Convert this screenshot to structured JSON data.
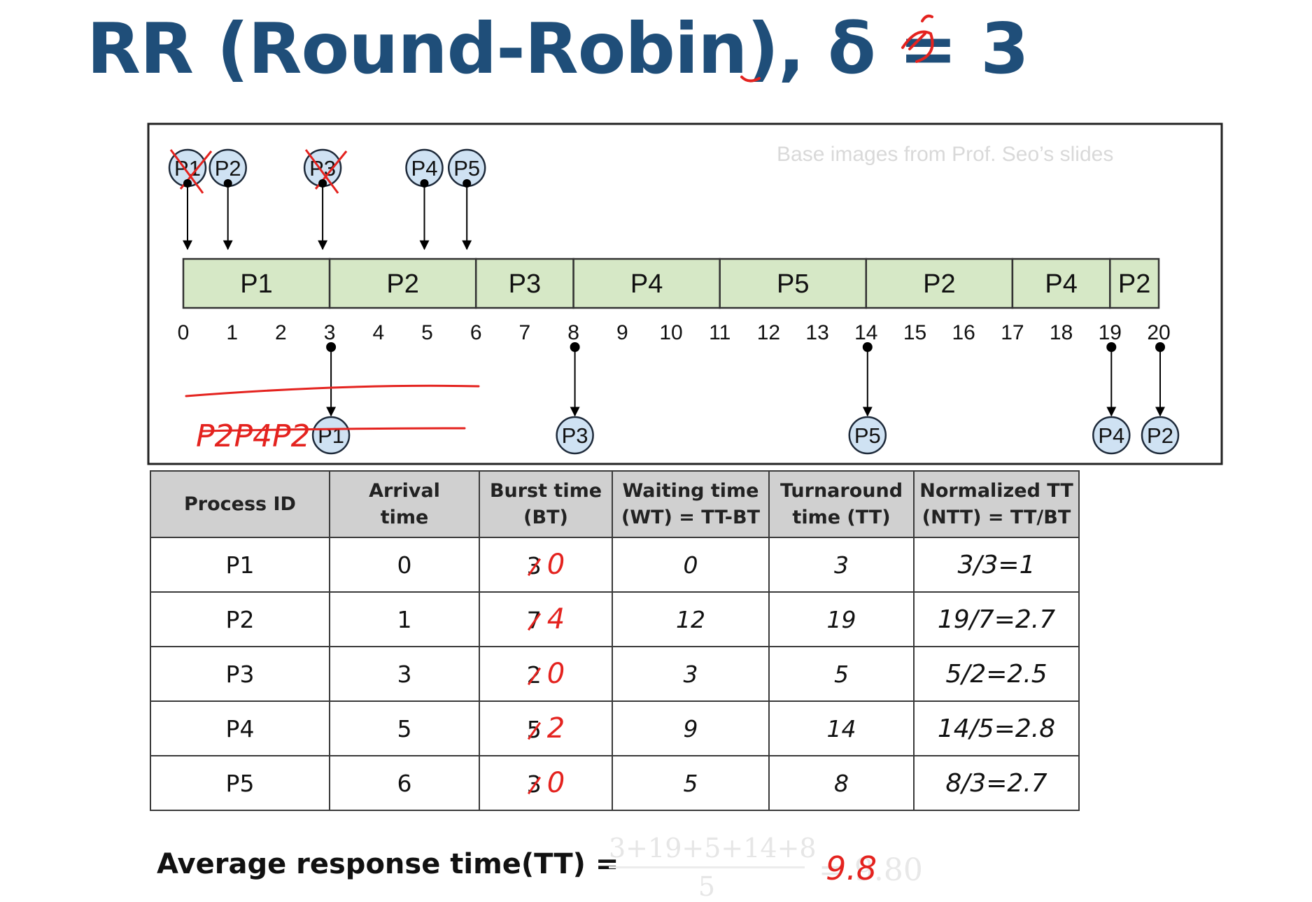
{
  "title": "RR (Round-Robin), δ = 3",
  "credit": "Base images from Prof. Seo’s slides",
  "gantt": {
    "segments": [
      {
        "label": "P1",
        "start": 0,
        "end": 3
      },
      {
        "label": "P2",
        "start": 3,
        "end": 6
      },
      {
        "label": "P3",
        "start": 6,
        "end": 8
      },
      {
        "label": "P4",
        "start": 8,
        "end": 11
      },
      {
        "label": "P5",
        "start": 11,
        "end": 14
      },
      {
        "label": "P2",
        "start": 14,
        "end": 17
      },
      {
        "label": "P4",
        "start": 17,
        "end": 19
      },
      {
        "label": "P2",
        "start": 19,
        "end": 20
      }
    ],
    "ticks": [
      "0",
      "1",
      "2",
      "3",
      "4",
      "5",
      "6",
      "7",
      "8",
      "9",
      "10",
      "11",
      "12",
      "13",
      "14",
      "15",
      "16",
      "17",
      "18",
      "19",
      "20"
    ],
    "arrivals": [
      {
        "label": "P1",
        "time": 0,
        "crossed": true
      },
      {
        "label": "P2",
        "time": 1,
        "crossed": false
      },
      {
        "label": "P3",
        "time": 3,
        "crossed": true
      },
      {
        "label": "P4",
        "time": 5,
        "crossed": false
      },
      {
        "label": "P5",
        "time": 6,
        "crossed": false
      }
    ],
    "completions": [
      {
        "label": "P1",
        "time": 3
      },
      {
        "label": "P3",
        "time": 8
      },
      {
        "label": "P5",
        "time": 14
      },
      {
        "label": "P4",
        "time": 19
      },
      {
        "label": "P2",
        "time": 20
      }
    ],
    "queue_note": "P2P4P2"
  },
  "table": {
    "headers": [
      [
        "Process ID"
      ],
      [
        "Arrival",
        "time"
      ],
      [
        "Burst time",
        "(BT)"
      ],
      [
        "Waiting time",
        "(WT) = TT-BT"
      ],
      [
        "Turnaround",
        "time (TT)"
      ],
      [
        "Normalized TT",
        "(NTT) = TT/BT"
      ]
    ],
    "rows": [
      {
        "pid": "P1",
        "arrival": "0",
        "burst": "3",
        "burst_note": "0",
        "wt": "0",
        "tt": "3",
        "ntt": "3/3=1"
      },
      {
        "pid": "P2",
        "arrival": "1",
        "burst": "7",
        "burst_note": "4",
        "wt": "12",
        "tt": "19",
        "ntt": "19/7=2.7"
      },
      {
        "pid": "P3",
        "arrival": "3",
        "burst": "2",
        "burst_note": "0",
        "wt": "3",
        "tt": "5",
        "ntt": "5/2=2.5"
      },
      {
        "pid": "P4",
        "arrival": "5",
        "burst": "5",
        "burst_note": "2",
        "wt": "9",
        "tt": "14",
        "ntt": "14/5=2.8"
      },
      {
        "pid": "P5",
        "arrival": "6",
        "burst": "3",
        "burst_note": "0",
        "wt": "5",
        "tt": "8",
        "ntt": "8/3=2.7"
      }
    ]
  },
  "average": {
    "label": "Average response time(TT) =",
    "numerator": "3+19+5+14+8",
    "denominator": "5",
    "ghost_result": "= 9.80",
    "handwritten_result": "9.8"
  },
  "colors": {
    "title": "#1f4e79",
    "segment_fill": "#d6e8c6",
    "circle_fill": "#cfe2f3",
    "annotation": "#e4231f"
  }
}
